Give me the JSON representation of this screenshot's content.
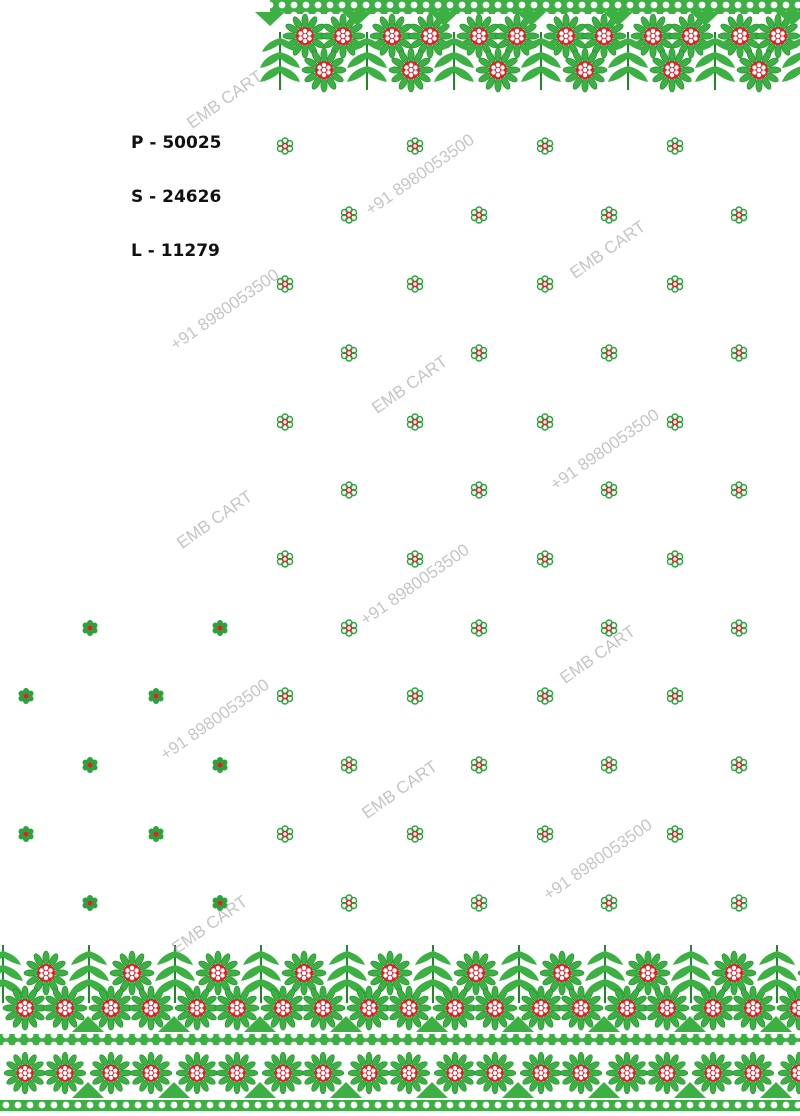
{
  "design_codes": [
    {
      "label": "P - 50025"
    },
    {
      "label": "S - 24626"
    },
    {
      "label": "L - 11279"
    }
  ],
  "watermarks": {
    "brand": "EMB CART",
    "phone": "+91 8980053500"
  },
  "colors": {
    "leaf_green": "#3cb043",
    "dark_green": "#1f8a2a",
    "flower_red": "#e0202a",
    "background": "#ffffff"
  }
}
